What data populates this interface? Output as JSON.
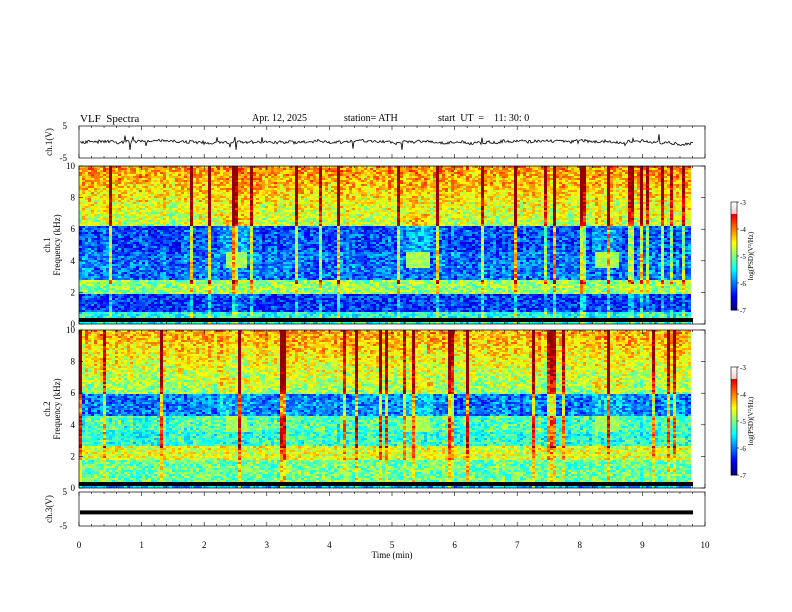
{
  "header": {
    "title": "VLF  Spectra",
    "date": "Apr. 12, 2025",
    "station": "station= ATH",
    "start": "start  UT  =    11: 30: 0"
  },
  "chart_data": [
    {
      "type": "line",
      "panel": "ch1-waveform",
      "ylabel": "ch.1(V)",
      "ylim": [
        -5,
        5
      ],
      "yticks": [
        "5",
        "-5"
      ],
      "xlim": [
        0,
        10
      ],
      "series": [
        {
          "values_description": "noisy waveform near 0 V",
          "baseline": 0
        }
      ]
    },
    {
      "type": "heatmap",
      "panel": "ch1-spectrogram",
      "ylabel": "ch.1\nFrequency  (kHz)",
      "ylim": [
        0,
        10
      ],
      "yticks": [
        "0",
        "2",
        "4",
        "6",
        "8",
        "10"
      ],
      "xlim": [
        0,
        10
      ],
      "colorbar": {
        "label": "log(PSD)(V²/Hz)",
        "ticks": [
          "-3",
          "-4",
          "-5",
          "-6",
          "-7"
        ],
        "range": [
          -7,
          -3
        ]
      },
      "bursts_min": [
        2.5,
        5.4,
        8.4
      ]
    },
    {
      "type": "heatmap",
      "panel": "ch2-spectrogram",
      "ylabel": "ch.2\nFrequency  (kHz)",
      "ylim": [
        0,
        10
      ],
      "yticks": [
        "0",
        "2",
        "4",
        "6",
        "8",
        "10"
      ],
      "xlim": [
        0,
        10
      ],
      "colorbar": {
        "label": "log(PSD)(V²/Hz)",
        "ticks": [
          "-3",
          "-4",
          "-5",
          "-6",
          "-7"
        ],
        "range": [
          -7,
          -3
        ]
      },
      "bursts_min": [
        2.5,
        5.4,
        8.4
      ]
    },
    {
      "type": "line",
      "panel": "ch3-waveform",
      "ylabel": "ch.3(V)",
      "ylim": [
        -5,
        5
      ],
      "yticks": [
        "5",
        "-5"
      ],
      "xlim": [
        0,
        10
      ],
      "series": [
        {
          "values_description": "flat thick trace",
          "baseline": -1
        }
      ]
    }
  ],
  "xaxis": {
    "label": "Time  (min)",
    "ticks": [
      "0",
      "1",
      "2",
      "3",
      "4",
      "5",
      "6",
      "7",
      "8",
      "9",
      "10"
    ]
  },
  "colors": {
    "axis": "#000000",
    "trace": "#000000"
  }
}
